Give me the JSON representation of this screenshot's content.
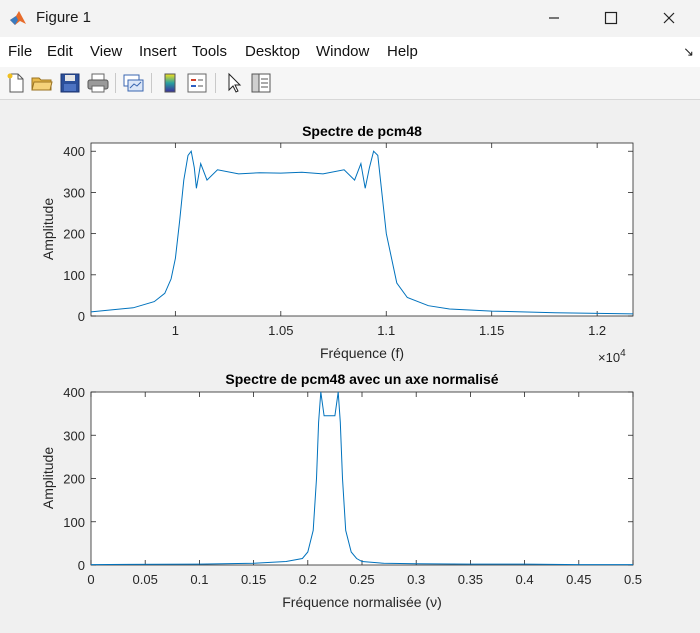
{
  "window": {
    "title": "Figure 1"
  },
  "menu": [
    "File",
    "Edit",
    "View",
    "Insert",
    "Tools",
    "Desktop",
    "Window",
    "Help"
  ],
  "toolbar_icons": [
    "new-figure-icon",
    "open-file-icon",
    "save-icon",
    "print-icon",
    "link-plot-icon",
    "colorbar-icon",
    "legend-icon",
    "pointer-icon",
    "property-editor-icon"
  ],
  "colors": {
    "line": "#0072bd",
    "figure_bg": "#f0f0f0",
    "axes_bg": "#ffffff"
  },
  "chart_data": [
    {
      "type": "line",
      "title": "Spectre de pcm48",
      "xlabel": "Fréquence (f)",
      "ylabel": "Amplitude",
      "xlim": [
        9600,
        12170
      ],
      "ylim": [
        0,
        420
      ],
      "x_ticks": [
        10000,
        10500,
        11000,
        11500,
        12000
      ],
      "x_tick_labels": [
        "1",
        "1.05",
        "1.1",
        "1.15",
        "1.2"
      ],
      "x_exponent_label": "×10",
      "x_exponent_power": "4",
      "y_ticks": [
        0,
        100,
        200,
        300,
        400
      ],
      "y_tick_labels": [
        "0",
        "100",
        "200",
        "300",
        "400"
      ],
      "grid": false,
      "series": [
        {
          "x": [
            9600,
            9800,
            9900,
            9950,
            9980,
            10000,
            10020,
            10040,
            10060,
            10075,
            10090,
            10100,
            10120,
            10150,
            10200,
            10300,
            10400,
            10500,
            10600,
            10700,
            10800,
            10850,
            10880,
            10900,
            10920,
            10940,
            10960,
            11000,
            11050,
            11100,
            11200,
            11300,
            11500,
            11800,
            12170
          ],
          "y": [
            10,
            20,
            35,
            55,
            90,
            140,
            230,
            330,
            390,
            400,
            360,
            310,
            370,
            330,
            355,
            345,
            348,
            347,
            349,
            345,
            355,
            330,
            370,
            310,
            360,
            400,
            390,
            200,
            80,
            45,
            25,
            17,
            12,
            8,
            5
          ]
        }
      ]
    },
    {
      "type": "line",
      "title": "Spectre de pcm48 avec un axe normalisé",
      "xlabel": "Fréquence normalisée (ν)",
      "ylabel": "Amplitude",
      "xlim": [
        0,
        0.5
      ],
      "ylim": [
        0,
        400
      ],
      "x_ticks": [
        0,
        0.05,
        0.1,
        0.15,
        0.2,
        0.25,
        0.3,
        0.35,
        0.4,
        0.45,
        0.5
      ],
      "x_tick_labels": [
        "0",
        "0.05",
        "0.1",
        "0.15",
        "0.2",
        "0.25",
        "0.3",
        "0.35",
        "0.4",
        "0.45",
        "0.5"
      ],
      "y_ticks": [
        0,
        100,
        200,
        300,
        400
      ],
      "y_tick_labels": [
        "0",
        "100",
        "200",
        "300",
        "400"
      ],
      "grid": false,
      "series": [
        {
          "x": [
            0,
            0.1,
            0.15,
            0.18,
            0.195,
            0.2,
            0.205,
            0.208,
            0.21,
            0.212,
            0.215,
            0.22,
            0.225,
            0.228,
            0.23,
            0.232,
            0.235,
            0.24,
            0.245,
            0.25,
            0.27,
            0.3,
            0.35,
            0.4,
            0.45,
            0.5
          ],
          "y": [
            1,
            2,
            4,
            8,
            15,
            30,
            80,
            200,
            330,
            400,
            345,
            345,
            345,
            400,
            330,
            200,
            80,
            30,
            15,
            8,
            4,
            3,
            2,
            2,
            1,
            1
          ]
        }
      ]
    }
  ]
}
